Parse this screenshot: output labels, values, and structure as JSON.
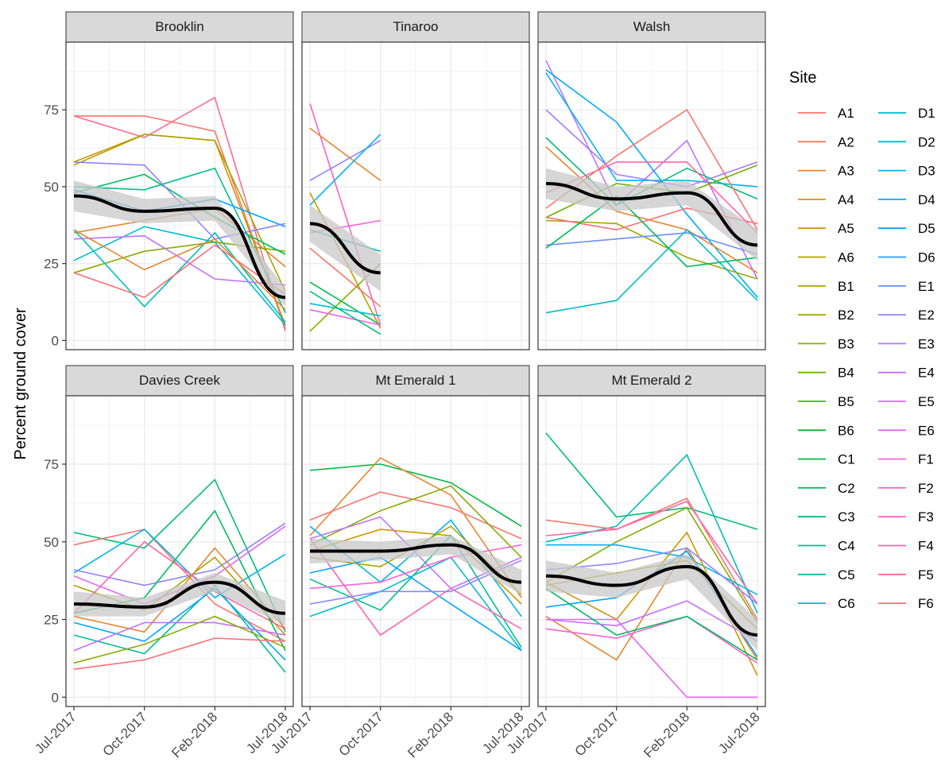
{
  "chart_data": {
    "type": "line",
    "x": [
      "Jul-2017",
      "Oct-2017",
      "Feb-2018",
      "Jul-2018"
    ],
    "ylabel": "Percent ground cover",
    "y_ticks": [
      0,
      25,
      50,
      75
    ],
    "ylim": [
      -3,
      97
    ],
    "grid": true,
    "legend": {
      "title": "Site",
      "placement": "right",
      "entries": [
        {
          "name": "A1",
          "color": "#F8766D"
        },
        {
          "name": "A2",
          "color": "#F17D4F"
        },
        {
          "name": "A3",
          "color": "#E7852F"
        },
        {
          "name": "A4",
          "color": "#DB8E00"
        },
        {
          "name": "A5",
          "color": "#CD9600"
        },
        {
          "name": "A6",
          "color": "#BE9C00"
        },
        {
          "name": "B1",
          "color": "#ADA200"
        },
        {
          "name": "B2",
          "color": "#9AA800"
        },
        {
          "name": "B3",
          "color": "#84AD00"
        },
        {
          "name": "B4",
          "color": "#6BB100"
        },
        {
          "name": "B5",
          "color": "#4CB500"
        },
        {
          "name": "B6",
          "color": "#00B81F"
        },
        {
          "name": "C1",
          "color": "#00BA42"
        },
        {
          "name": "C2",
          "color": "#00BC5E"
        },
        {
          "name": "C3",
          "color": "#00BE77"
        },
        {
          "name": "C4",
          "color": "#00BF8E"
        },
        {
          "name": "C5",
          "color": "#00C0A4"
        },
        {
          "name": "C6",
          "color": "#00BFB9"
        },
        {
          "name": "D1",
          "color": "#00BDCC"
        },
        {
          "name": "D2",
          "color": "#00B9DE"
        },
        {
          "name": "D3",
          "color": "#00B4EE"
        },
        {
          "name": "D4",
          "color": "#00ADFA"
        },
        {
          "name": "D5",
          "color": "#00A5FF"
        },
        {
          "name": "D6",
          "color": "#2C9BFF"
        },
        {
          "name": "E1",
          "color": "#6B8FFF"
        },
        {
          "name": "E2",
          "color": "#8F84FF"
        },
        {
          "name": "E3",
          "color": "#AB7AFF"
        },
        {
          "name": "E4",
          "color": "#C270FF"
        },
        {
          "name": "E5",
          "color": "#D56AFF"
        },
        {
          "name": "E6",
          "color": "#E566F2"
        },
        {
          "name": "F1",
          "color": "#F163E3"
        },
        {
          "name": "F2",
          "color": "#FA62D2"
        },
        {
          "name": "F3",
          "color": "#FF62BE"
        },
        {
          "name": "F4",
          "color": "#FF65A8"
        },
        {
          "name": "F5",
          "color": "#FF6A8F"
        },
        {
          "name": "F6",
          "color": "#FD6F75"
        }
      ]
    },
    "smooth_color": "#000000",
    "ribbon_color": "#C8C8C8",
    "panels": [
      {
        "title": "Brooklin",
        "series": [
          {
            "color": "#F8766D",
            "values": [
              73,
              73,
              68,
              4
            ]
          },
          {
            "color": "#FF6A8F",
            "values": [
              73,
              66,
              79,
              3
            ]
          },
          {
            "color": "#E7852F",
            "values": [
              35,
              39,
              43,
              24
            ]
          },
          {
            "color": "#CD9600",
            "values": [
              58,
              67,
              65,
              5
            ]
          },
          {
            "color": "#ADA200",
            "values": [
              57,
              67,
              65,
              16
            ]
          },
          {
            "color": "#84AD00",
            "values": [
              22,
              29,
              32,
              29
            ]
          },
          {
            "color": "#00BC5E",
            "values": [
              48,
              54,
              40,
              28
            ]
          },
          {
            "color": "#00BF8E",
            "values": [
              50,
              49,
              56,
              9
            ]
          },
          {
            "color": "#00BFB9",
            "values": [
              36,
              11,
              35,
              6
            ]
          },
          {
            "color": "#00BDCC",
            "values": [
              26,
              37,
              32,
              5
            ]
          },
          {
            "color": "#00A5FF",
            "values": [
              49,
              42,
              46,
              37
            ]
          },
          {
            "color": "#8F84FF",
            "values": [
              58,
              57,
              33,
              38
            ]
          },
          {
            "color": "#C270FF",
            "values": [
              33,
              34,
              20,
              18
            ]
          },
          {
            "color": "#FD6F75",
            "values": [
              22,
              14,
              31,
              15
            ]
          },
          {
            "color": "#E7852F",
            "values": [
              36,
              23,
              33,
              10
            ]
          }
        ],
        "smooth": [
          47,
          42,
          43,
          14
        ],
        "band": [
          5,
          4,
          4,
          3
        ]
      },
      {
        "title": "Tinaroo",
        "series": [
          {
            "color": "#FF62BE",
            "values": [
              77,
              5
            ]
          },
          {
            "color": "#E7852F",
            "values": [
              69,
              52
            ]
          },
          {
            "color": "#8F84FF",
            "values": [
              52,
              65
            ]
          },
          {
            "color": "#00B4EE",
            "values": [
              44,
              67
            ]
          },
          {
            "color": "#BE9C00",
            "values": [
              48,
              4
            ]
          },
          {
            "color": "#FA62D2",
            "values": [
              35,
              39
            ]
          },
          {
            "color": "#00BFB9",
            "values": [
              36,
              29
            ]
          },
          {
            "color": "#F8766D",
            "values": [
              30,
              11
            ]
          },
          {
            "color": "#00BA42",
            "values": [
              19,
              5
            ]
          },
          {
            "color": "#00BDCC",
            "values": [
              12,
              8
            ]
          },
          {
            "color": "#84AD00",
            "values": [
              3,
              25
            ]
          },
          {
            "color": "#F163E3",
            "values": [
              10,
              5
            ]
          },
          {
            "color": "#00BE77",
            "values": [
              16,
              2
            ]
          }
        ],
        "smooth": [
          38,
          22
        ],
        "band": [
          6,
          6
        ]
      },
      {
        "title": "Walsh",
        "series": [
          {
            "color": "#C270FF",
            "values": [
              91,
              44,
              65,
              20
            ]
          },
          {
            "color": "#00ADFA",
            "values": [
              88,
              71,
              41,
              14
            ]
          },
          {
            "color": "#00B4EE",
            "values": [
              87,
              52,
              52,
              50
            ]
          },
          {
            "color": "#AB7AFF",
            "values": [
              75,
              54,
              50,
              58
            ]
          },
          {
            "color": "#00BE77",
            "values": [
              66,
              44,
              56,
              46
            ]
          },
          {
            "color": "#E7852F",
            "values": [
              63,
              42,
              36,
              22
            ]
          },
          {
            "color": "#FF65A8",
            "values": [
              48,
              58,
              58,
              35
            ]
          },
          {
            "color": "#F8766D",
            "values": [
              43,
              60,
              75,
              36
            ]
          },
          {
            "color": "#6BB100",
            "values": [
              40,
              51,
              48,
              57
            ]
          },
          {
            "color": "#9AA800",
            "values": [
              39,
              38,
              27,
              20
            ]
          },
          {
            "color": "#FD6F75",
            "values": [
              40,
              36,
              43,
              38
            ]
          },
          {
            "color": "#6B8FFF",
            "values": [
              31,
              33,
              35,
              28
            ]
          },
          {
            "color": "#00BDCC",
            "values": [
              9,
              13,
              36,
              13
            ]
          },
          {
            "color": "#00BC5E",
            "values": [
              30,
              47,
              24,
              27
            ]
          }
        ],
        "smooth": [
          51,
          46,
          48,
          31
        ],
        "band": [
          5,
          4,
          4,
          5
        ]
      },
      {
        "title": "Davies Creek",
        "series": [
          {
            "color": "#00BE77",
            "values": [
              53,
              48,
              70,
              21
            ]
          },
          {
            "color": "#F8766D",
            "values": [
              49,
              54,
              30,
              18
            ]
          },
          {
            "color": "#00B4EE",
            "values": [
              40,
              54,
              32,
              46
            ]
          },
          {
            "color": "#8F84FF",
            "values": [
              41,
              36,
              41,
              56
            ]
          },
          {
            "color": "#E7852F",
            "values": [
              26,
              21,
              48,
              22
            ]
          },
          {
            "color": "#ADA200",
            "values": [
              36,
              28,
              45,
              20
            ]
          },
          {
            "color": "#FF65A8",
            "values": [
              27,
              50,
              34,
              22
            ]
          },
          {
            "color": "#00BC5E",
            "values": [
              27,
              32,
              60,
              15
            ]
          },
          {
            "color": "#00BF8E",
            "values": [
              20,
              14,
              36,
              8
            ]
          },
          {
            "color": "#00A5FF",
            "values": [
              24,
              18,
              35,
              12
            ]
          },
          {
            "color": "#C270FF",
            "values": [
              15,
              24,
              24,
              20
            ]
          },
          {
            "color": "#84AD00",
            "values": [
              11,
              17,
              26,
              16
            ]
          },
          {
            "color": "#FD6F75",
            "values": [
              9,
              12,
              19,
              18
            ]
          },
          {
            "color": "#E566F2",
            "values": [
              39,
              30,
              39,
              55
            ]
          }
        ],
        "smooth": [
          30,
          29,
          37,
          27
        ],
        "band": [
          4,
          3,
          3,
          4
        ]
      },
      {
        "title": "Mt Emerald 1",
        "series": [
          {
            "color": "#00BA42",
            "values": [
              73,
              75,
              69,
              55
            ]
          },
          {
            "color": "#E7852F",
            "values": [
              52,
              77,
              65,
              32
            ]
          },
          {
            "color": "#F8766D",
            "values": [
              57,
              66,
              61,
              51
            ]
          },
          {
            "color": "#84AD00",
            "values": [
              49,
              60,
              68,
              45
            ]
          },
          {
            "color": "#CD9600",
            "values": [
              47,
              54,
              52,
              30
            ]
          },
          {
            "color": "#00B4EE",
            "values": [
              55,
              37,
              57,
              26
            ]
          },
          {
            "color": "#C270FF",
            "values": [
              51,
              58,
              35,
              45
            ]
          },
          {
            "color": "#00BF8E",
            "values": [
              38,
              28,
              52,
              16
            ]
          },
          {
            "color": "#00BDCC",
            "values": [
              26,
              34,
              45,
              15
            ]
          },
          {
            "color": "#00A5FF",
            "values": [
              40,
              45,
              30,
              15
            ]
          },
          {
            "color": "#FF65A8",
            "values": [
              51,
              20,
              35,
              22
            ]
          },
          {
            "color": "#FA62D2",
            "values": [
              35,
              37,
              45,
              49
            ]
          },
          {
            "color": "#8F84FF",
            "values": [
              30,
              34,
              34,
              44
            ]
          },
          {
            "color": "#ADA200",
            "values": [
              45,
              42,
              55,
              33
            ]
          }
        ],
        "smooth": [
          47,
          47,
          49,
          37
        ],
        "band": [
          4,
          3,
          3,
          4
        ]
      },
      {
        "title": "Mt Emerald 2",
        "series": [
          {
            "color": "#00BE77",
            "values": [
              85,
              58,
              61,
              54
            ]
          },
          {
            "color": "#00BFB9",
            "values": [
              50,
              55,
              78,
              27
            ]
          },
          {
            "color": "#F8766D",
            "values": [
              57,
              54,
              64,
              25
            ]
          },
          {
            "color": "#FF65A8",
            "values": [
              52,
              54,
              63,
              30
            ]
          },
          {
            "color": "#84AD00",
            "values": [
              37,
              50,
              61,
              24
            ]
          },
          {
            "color": "#00B4EE",
            "values": [
              49,
              49,
              45,
              33
            ]
          },
          {
            "color": "#CD9600",
            "values": [
              37,
              25,
              53,
              7
            ]
          },
          {
            "color": "#E7852F",
            "values": [
              26,
              12,
              48,
              12
            ]
          },
          {
            "color": "#8F84FF",
            "values": [
              41,
              43,
              48,
              30
            ]
          },
          {
            "color": "#E566F2",
            "values": [
              25,
              25,
              0,
              0
            ]
          },
          {
            "color": "#FA62D2",
            "values": [
              22,
              19,
              26,
              11
            ]
          },
          {
            "color": "#00A5FF",
            "values": [
              29,
              32,
              47,
              13
            ]
          },
          {
            "color": "#00BC5E",
            "values": [
              35,
              20,
              26,
              12
            ]
          },
          {
            "color": "#ADA200",
            "values": [
              36,
              40,
              44,
              22
            ]
          },
          {
            "color": "#C270FF",
            "values": [
              25,
              23,
              31,
              18
            ]
          }
        ],
        "smooth": [
          39,
          36,
          42,
          20
        ],
        "band": [
          5,
          4,
          4,
          5
        ]
      }
    ]
  }
}
